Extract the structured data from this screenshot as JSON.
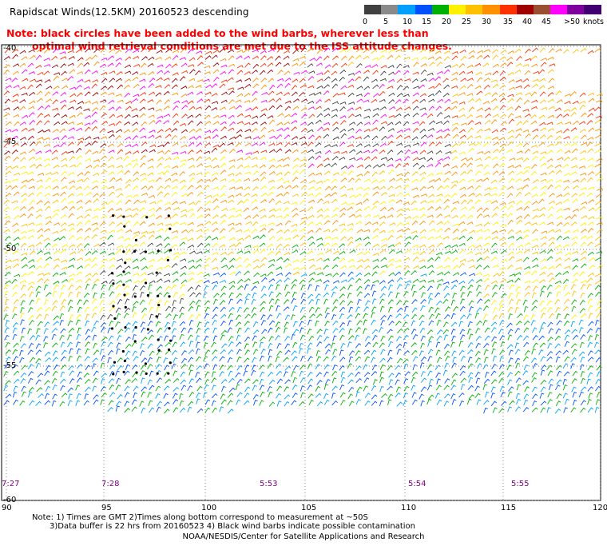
{
  "header": {
    "title": "Rapidscat Winds(12.5KM) 20160523 descending",
    "note_line1": "Note: black circles have been added to the wind barbs, wherever less than",
    "note_line2": "optimal wind retrieval conditions are met due to the ISS attitude changes."
  },
  "legend": {
    "colors": [
      "#404040",
      "#8a8a8a",
      "#00a0ff",
      "#0050ff",
      "#00b000",
      "#fff000",
      "#ffc000",
      "#ff9000",
      "#ff3000",
      "#a00000",
      "#9a5030",
      "#ff00ff",
      "#8000a0",
      "#400070"
    ],
    "labels": [
      "0",
      "5",
      "10",
      "15",
      "20",
      "25",
      "30",
      "35",
      "40",
      "45",
      ">50"
    ],
    "unit": "knots"
  },
  "map": {
    "lon_labels": [
      "90",
      "95",
      "100",
      "105",
      "110",
      "115",
      "120"
    ],
    "lat_labels": [
      "-40",
      "-45",
      "-50",
      "-55",
      "-60"
    ],
    "time_labels": [
      "7:27",
      "7:28",
      "5:53",
      "5:54",
      "5:55"
    ]
  },
  "footer": {
    "line1": "Note: 1) Times are GMT 2)Times along bottom correspond to measurement at ~50S",
    "line2": "3)Data buffer is 22 hrs from 20160523 4) Black wind barbs indicate possible contamination",
    "credit": "NOAA/NESDIS/Center for Satellite Applications and Research"
  }
}
